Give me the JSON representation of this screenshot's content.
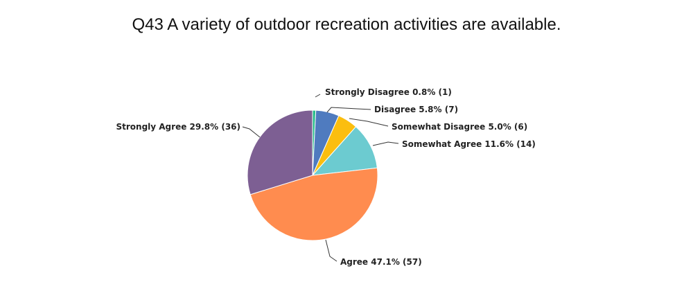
{
  "chart_data": {
    "type": "pie",
    "title": "Q43 A variety of outdoor recreation activities are available.",
    "slices": [
      {
        "label": "Strongly Disagree",
        "percent": 0.8,
        "count": 1,
        "color": "#2bbd8c",
        "display": "Strongly Disagree 0.8% (1)"
      },
      {
        "label": "Disagree",
        "percent": 5.8,
        "count": 7,
        "color": "#4f7bbf",
        "display": "Disagree 5.8% (7)"
      },
      {
        "label": "Somewhat Disagree",
        "percent": 5.0,
        "count": 6,
        "color": "#fbbe0f",
        "display": "Somewhat Disagree 5.0% (6)"
      },
      {
        "label": "Somewhat Agree",
        "percent": 11.6,
        "count": 14,
        "color": "#6ccbd0",
        "display": "Somewhat Agree 11.6% (14)"
      },
      {
        "label": "Agree",
        "percent": 47.1,
        "count": 57,
        "color": "#ff8c4f",
        "display": "Agree 47.1% (57)"
      },
      {
        "label": "Strongly Agree",
        "percent": 29.8,
        "count": 36,
        "color": "#7d5f93",
        "display": "Strongly Agree 29.8% (36)"
      }
    ]
  }
}
